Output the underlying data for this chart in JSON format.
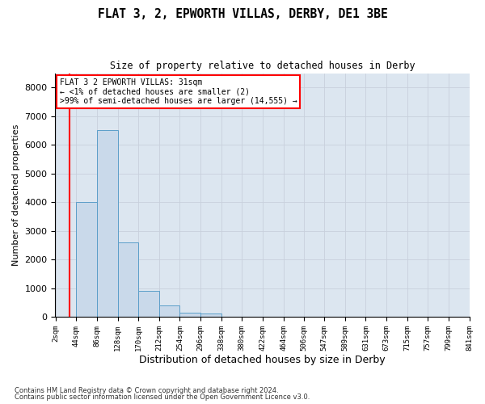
{
  "title": "FLAT 3, 2, EPWORTH VILLAS, DERBY, DE1 3BE",
  "subtitle": "Size of property relative to detached houses in Derby",
  "xlabel": "Distribution of detached houses by size in Derby",
  "ylabel": "Number of detached properties",
  "footer_line1": "Contains HM Land Registry data © Crown copyright and database right 2024.",
  "footer_line2": "Contains public sector information licensed under the Open Government Licence v3.0.",
  "bar_color": "#c9d9ea",
  "bar_edge_color": "#5b9ec9",
  "grid_color": "#c8d0dc",
  "background_color": "#dce6f0",
  "annotation_text": "FLAT 3 2 EPWORTH VILLAS: 31sqm\n← <1% of detached houses are smaller (2)\n>99% of semi-detached houses are larger (14,555) →",
  "annotation_box_color": "white",
  "annotation_box_edge_color": "red",
  "property_size_sqm": 31,
  "bin_edges": [
    2,
    44,
    86,
    128,
    170,
    212,
    254,
    296,
    338,
    380,
    422,
    464,
    506,
    547,
    589,
    631,
    673,
    715,
    757,
    799,
    841
  ],
  "bin_labels": [
    "2sqm",
    "44sqm",
    "86sqm",
    "128sqm",
    "170sqm",
    "212sqm",
    "254sqm",
    "296sqm",
    "338sqm",
    "380sqm",
    "422sqm",
    "464sqm",
    "506sqm",
    "547sqm",
    "589sqm",
    "631sqm",
    "673sqm",
    "715sqm",
    "757sqm",
    "799sqm",
    "841sqm"
  ],
  "bar_heights": [
    2,
    4000,
    6500,
    2600,
    900,
    380,
    150,
    100,
    0,
    0,
    0,
    0,
    0,
    0,
    0,
    0,
    0,
    0,
    0,
    0
  ],
  "ylim": [
    0,
    8500
  ],
  "yticks": [
    0,
    1000,
    2000,
    3000,
    4000,
    5000,
    6000,
    7000,
    8000
  ]
}
